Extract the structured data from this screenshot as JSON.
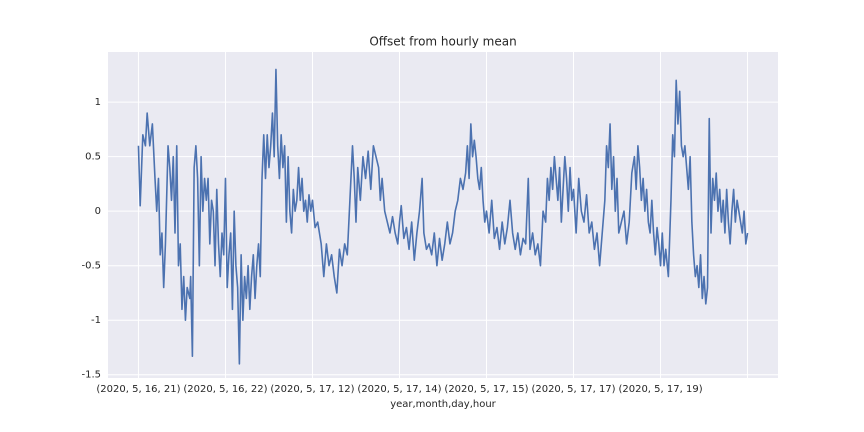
{
  "chart_data": {
    "type": "line",
    "title": "Offset from hourly mean",
    "x_label": "year,month,day,hour",
    "xlim": [
      -35,
      735
    ],
    "ylim": [
      -1.53,
      1.46
    ],
    "xticks": [
      {
        "value": 0,
        "label": "(2020, 5, 16, 21)"
      },
      {
        "value": 100,
        "label": "(2020, 5, 16, 22)"
      },
      {
        "value": 200,
        "label": "(2020, 5, 17, 12)"
      },
      {
        "value": 300,
        "label": "(2020, 5, 17, 14)"
      },
      {
        "value": 400,
        "label": "(2020, 5, 17, 15)"
      },
      {
        "value": 500,
        "label": "(2020, 5, 17, 17)"
      },
      {
        "value": 600,
        "label": "(2020, 5, 17, 19)"
      },
      {
        "value": 700,
        "label": null
      }
    ],
    "yticks": [
      1.0,
      0.5,
      0.0,
      -0.5,
      -1.0,
      -1.5
    ],
    "grid": true,
    "series": [
      {
        "color": "#4c72b0",
        "x": [
          0,
          2,
          5,
          8,
          10,
          13,
          16,
          19,
          21,
          23,
          25,
          27,
          29,
          31,
          34,
          36,
          38,
          40,
          42,
          44,
          46,
          48,
          50,
          52,
          54,
          56,
          59,
          60,
          62,
          64,
          66,
          68,
          70,
          72,
          74,
          76,
          78,
          80,
          82,
          84,
          86,
          88,
          90,
          92,
          94,
          96,
          98,
          100,
          102,
          104,
          106,
          108,
          110,
          112,
          114,
          116,
          118,
          120,
          122,
          124,
          126,
          128,
          130,
          132,
          134,
          136,
          138,
          140,
          142,
          144,
          146,
          148,
          150,
          152,
          154,
          156,
          158,
          160,
          162,
          164,
          166,
          168,
          170,
          172,
          174,
          176,
          178,
          180,
          182,
          184,
          186,
          188,
          190,
          192,
          194,
          196,
          198,
          200,
          203,
          206,
          210,
          213,
          216,
          219,
          222,
          225,
          228,
          231,
          234,
          237,
          240,
          243,
          246,
          248,
          250,
          252,
          255,
          258,
          261,
          264,
          267,
          270,
          273,
          276,
          278,
          280,
          283,
          286,
          289,
          292,
          295,
          298,
          300,
          302,
          305,
          308,
          311,
          314,
          317,
          320,
          323,
          326,
          328,
          331,
          334,
          337,
          340,
          343,
          346,
          349,
          352,
          355,
          358,
          361,
          364,
          367,
          370,
          373,
          376,
          378,
          380,
          382,
          384,
          386,
          388,
          390,
          392,
          394,
          396,
          398,
          400,
          403,
          406,
          409,
          412,
          415,
          418,
          421,
          424,
          427,
          430,
          433,
          436,
          439,
          442,
          445,
          448,
          450,
          453,
          456,
          459,
          462,
          465,
          468,
          470,
          472,
          474,
          476,
          478,
          480,
          482,
          484,
          486,
          488,
          490,
          492,
          494,
          496,
          498,
          500,
          503,
          506,
          509,
          512,
          515,
          518,
          521,
          524,
          527,
          530,
          533,
          536,
          538,
          540,
          542,
          544,
          546,
          548,
          550,
          552,
          555,
          558,
          561,
          564,
          567,
          570,
          572,
          574,
          576,
          578,
          580,
          582,
          584,
          586,
          588,
          590,
          592,
          594,
          596,
          598,
          600,
          602,
          604,
          606,
          609,
          612,
          614,
          616,
          618,
          620,
          622,
          624,
          626,
          628,
          630,
          632,
          634,
          636,
          638,
          640,
          642,
          644,
          646,
          648,
          650,
          652,
          654,
          656,
          658,
          660,
          662,
          664,
          666,
          668,
          670,
          672,
          674,
          676,
          678,
          680,
          682,
          684,
          686,
          688,
          690,
          692,
          694,
          696,
          698,
          700
        ],
        "values": [
          0.6,
          0.05,
          0.7,
          0.6,
          0.9,
          0.6,
          0.8,
          0.3,
          0.0,
          0.3,
          -0.4,
          -0.2,
          -0.7,
          -0.3,
          0.6,
          0.4,
          0.1,
          0.5,
          -0.2,
          0.6,
          -0.5,
          -0.3,
          -0.9,
          -0.6,
          -1.0,
          -0.7,
          -0.8,
          -0.6,
          -1.33,
          0.4,
          0.6,
          0.3,
          -0.5,
          0.5,
          0.0,
          0.3,
          0.1,
          0.3,
          -0.3,
          0.1,
          0.0,
          -0.5,
          0.2,
          -0.3,
          -0.6,
          -0.2,
          -0.4,
          0.3,
          -0.7,
          -0.4,
          -0.2,
          -0.9,
          0.0,
          -0.5,
          -0.7,
          -1.4,
          -0.4,
          -1.0,
          -0.6,
          -0.8,
          -0.5,
          -0.9,
          -0.6,
          -0.4,
          -0.8,
          -0.5,
          -0.3,
          -0.6,
          0.3,
          0.7,
          0.3,
          0.7,
          0.4,
          0.6,
          0.9,
          0.5,
          1.3,
          0.6,
          0.3,
          0.7,
          0.4,
          0.6,
          -0.1,
          0.5,
          0.0,
          -0.2,
          0.2,
          0.0,
          0.1,
          0.4,
          0.1,
          0.3,
          0.0,
          0.1,
          -0.1,
          0.15,
          0.0,
          0.1,
          -0.15,
          -0.1,
          -0.3,
          -0.6,
          -0.3,
          -0.5,
          -0.4,
          -0.6,
          -0.75,
          -0.35,
          -0.5,
          -0.3,
          -0.4,
          0.1,
          0.6,
          0.3,
          -0.1,
          0.4,
          0.1,
          0.5,
          0.3,
          0.55,
          0.2,
          0.6,
          0.5,
          0.4,
          0.1,
          0.3,
          0.0,
          -0.1,
          -0.2,
          -0.05,
          -0.2,
          -0.3,
          -0.1,
          0.05,
          -0.25,
          -0.15,
          -0.35,
          -0.1,
          -0.45,
          -0.2,
          0.0,
          0.3,
          -0.2,
          -0.35,
          -0.3,
          -0.4,
          -0.2,
          -0.5,
          -0.25,
          -0.45,
          -0.3,
          -0.1,
          -0.3,
          -0.2,
          0.0,
          0.1,
          0.3,
          0.2,
          0.35,
          0.6,
          0.3,
          0.8,
          0.5,
          0.65,
          0.5,
          0.3,
          0.2,
          0.4,
          0.1,
          -0.1,
          0.0,
          -0.2,
          0.1,
          -0.25,
          -0.15,
          -0.35,
          -0.1,
          -0.3,
          -0.15,
          0.1,
          -0.2,
          -0.35,
          -0.2,
          -0.4,
          -0.25,
          -0.3,
          0.3,
          -0.35,
          -0.2,
          -0.4,
          -0.3,
          -0.5,
          0.0,
          -0.1,
          0.3,
          0.1,
          0.4,
          0.2,
          0.5,
          0.3,
          0.1,
          0.4,
          -0.1,
          0.2,
          0.5,
          0.3,
          0.0,
          0.4,
          0.1,
          0.2,
          -0.2,
          0.3,
          0.0,
          -0.1,
          0.15,
          -0.2,
          -0.1,
          -0.35,
          -0.2,
          -0.5,
          -0.2,
          0.1,
          0.6,
          0.4,
          0.8,
          0.2,
          0.5,
          0.0,
          0.3,
          -0.2,
          -0.1,
          0.0,
          -0.3,
          -0.1,
          0.35,
          0.5,
          0.2,
          0.6,
          0.4,
          0.1,
          0.3,
          0.0,
          0.2,
          -0.1,
          -0.2,
          0.1,
          -0.2,
          -0.4,
          -0.15,
          -0.3,
          -0.5,
          -0.2,
          -0.5,
          -0.35,
          -0.6,
          0.1,
          0.7,
          0.5,
          1.2,
          0.8,
          1.1,
          0.6,
          0.5,
          0.6,
          0.4,
          0.2,
          0.5,
          -0.1,
          -0.4,
          -0.6,
          -0.5,
          -0.7,
          -0.4,
          -0.8,
          -0.6,
          -0.85,
          -0.7,
          0.85,
          -0.2,
          0.3,
          0.1,
          0.35,
          0.0,
          0.2,
          -0.1,
          0.1,
          -0.2,
          0.2,
          -0.1,
          -0.3,
          0.0,
          0.2,
          -0.1,
          0.1,
          0.0,
          -0.1,
          -0.2,
          0.0,
          -0.3,
          -0.2
        ]
      }
    ]
  }
}
